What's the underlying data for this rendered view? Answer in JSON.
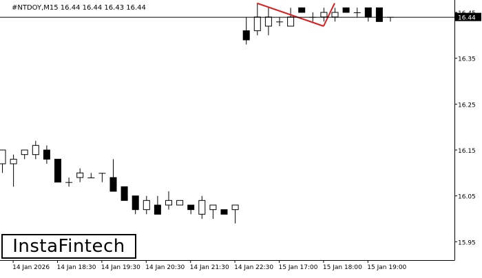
{
  "header": {
    "symbol": "#NTDOY,M15",
    "ohlc": "16.44 16.44 16.43 16.44"
  },
  "logo": {
    "text": "InstaFintech"
  },
  "colors": {
    "bull_body": "#ffffff",
    "bear_body": "#000000",
    "pattern_line": "#e0191b",
    "axis": "#000000"
  },
  "chart_data": {
    "type": "candlestick",
    "title": "#NTDOY,M15  16.44 16.44 16.43 16.44",
    "ylim": [
      15.91,
      16.477
    ],
    "y_ticks": [
      "16.45",
      "16.35",
      "16.25",
      "16.15",
      "16.05",
      "15.95"
    ],
    "current_price_label": "16.44",
    "current_price": 16.44,
    "x_ticks": [
      {
        "label": "14 Jan 2026",
        "index": 1
      },
      {
        "label": "14 Jan 18:30",
        "index": 5
      },
      {
        "label": "14 Jan 19:30",
        "index": 9
      },
      {
        "label": "14 Jan 20:30",
        "index": 13
      },
      {
        "label": "14 Jan 21:30",
        "index": 17
      },
      {
        "label": "14 Jan 22:30",
        "index": 21
      },
      {
        "label": "15 Jan 17:00",
        "index": 25
      },
      {
        "label": "15 Jan 18:00",
        "index": 29
      },
      {
        "label": "15 Jan 19:00",
        "index": 33
      }
    ],
    "candles": [
      {
        "o": 16.12,
        "h": 16.15,
        "l": 16.1,
        "c": 16.15
      },
      {
        "o": 16.12,
        "h": 16.14,
        "l": 16.07,
        "c": 16.13
      },
      {
        "o": 16.14,
        "h": 16.15,
        "l": 16.13,
        "c": 16.15
      },
      {
        "o": 16.14,
        "h": 16.17,
        "l": 16.13,
        "c": 16.16
      },
      {
        "o": 16.15,
        "h": 16.16,
        "l": 16.12,
        "c": 16.13
      },
      {
        "o": 16.13,
        "h": 16.13,
        "l": 16.08,
        "c": 16.08
      },
      {
        "o": 16.08,
        "h": 16.09,
        "l": 16.07,
        "c": 16.08
      },
      {
        "o": 16.09,
        "h": 16.11,
        "l": 16.08,
        "c": 16.1
      },
      {
        "o": 16.09,
        "h": 16.1,
        "l": 16.09,
        "c": 16.09
      },
      {
        "o": 16.1,
        "h": 16.1,
        "l": 16.08,
        "c": 16.1
      },
      {
        "o": 16.09,
        "h": 16.13,
        "l": 16.06,
        "c": 16.06
      },
      {
        "o": 16.07,
        "h": 16.07,
        "l": 16.04,
        "c": 16.04
      },
      {
        "o": 16.05,
        "h": 16.05,
        "l": 16.01,
        "c": 16.02
      },
      {
        "o": 16.02,
        "h": 16.05,
        "l": 16.01,
        "c": 16.04
      },
      {
        "o": 16.03,
        "h": 16.05,
        "l": 16.01,
        "c": 16.01
      },
      {
        "o": 16.03,
        "h": 16.06,
        "l": 16.02,
        "c": 16.04
      },
      {
        "o": 16.03,
        "h": 16.04,
        "l": 16.03,
        "c": 16.04
      },
      {
        "o": 16.03,
        "h": 16.03,
        "l": 16.01,
        "c": 16.02
      },
      {
        "o": 16.01,
        "h": 16.05,
        "l": 16.0,
        "c": 16.04
      },
      {
        "o": 16.02,
        "h": 16.03,
        "l": 16.0,
        "c": 16.03
      },
      {
        "o": 16.02,
        "h": 16.02,
        "l": 16.01,
        "c": 16.01
      },
      {
        "o": 16.02,
        "h": 16.03,
        "l": 15.99,
        "c": 16.03
      },
      {
        "o": 16.41,
        "h": 16.44,
        "l": 16.38,
        "c": 16.39
      },
      {
        "o": 16.41,
        "h": 16.47,
        "l": 16.4,
        "c": 16.44
      },
      {
        "o": 16.42,
        "h": 16.46,
        "l": 16.4,
        "c": 16.44
      },
      {
        "o": 16.43,
        "h": 16.44,
        "l": 16.42,
        "c": 16.43
      },
      {
        "o": 16.42,
        "h": 16.46,
        "l": 16.42,
        "c": 16.44
      },
      {
        "o": 16.46,
        "h": 16.46,
        "l": 16.45,
        "c": 16.45
      },
      {
        "o": 16.44,
        "h": 16.45,
        "l": 16.43,
        "c": 16.44
      },
      {
        "o": 16.44,
        "h": 16.46,
        "l": 16.43,
        "c": 16.45
      },
      {
        "o": 16.44,
        "h": 16.46,
        "l": 16.43,
        "c": 16.45
      },
      {
        "o": 16.46,
        "h": 16.46,
        "l": 16.45,
        "c": 16.45
      },
      {
        "o": 16.45,
        "h": 16.46,
        "l": 16.44,
        "c": 16.45
      },
      {
        "o": 16.46,
        "h": 16.46,
        "l": 16.43,
        "c": 16.44
      },
      {
        "o": 16.46,
        "h": 16.46,
        "l": 16.43,
        "c": 16.43
      },
      {
        "o": 16.44,
        "h": 16.44,
        "l": 16.43,
        "c": 16.44
      }
    ],
    "pattern_lines": [
      {
        "from": {
          "index": 23,
          "price": 16.47
        },
        "to": {
          "index": 29,
          "price": 16.42
        }
      },
      {
        "from": {
          "index": 29,
          "price": 16.42
        },
        "to": {
          "index": 30,
          "price": 16.47
        }
      }
    ]
  }
}
